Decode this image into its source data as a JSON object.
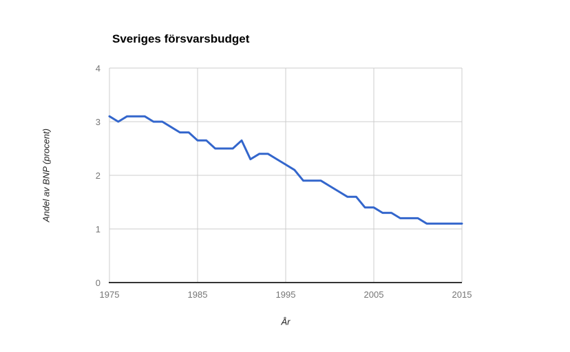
{
  "page": {
    "background": "#FFFFFF"
  },
  "chart_data": {
    "type": "line",
    "title": "Sveriges försvarsbudget",
    "xlabel": "År",
    "ylabel": "Andel av BNP (procent)",
    "x": [
      1975,
      1976,
      1977,
      1978,
      1979,
      1980,
      1981,
      1982,
      1983,
      1984,
      1985,
      1986,
      1987,
      1988,
      1989,
      1990,
      1991,
      1992,
      1993,
      1994,
      1995,
      1996,
      1997,
      1998,
      1999,
      2000,
      2001,
      2002,
      2003,
      2004,
      2005,
      2006,
      2007,
      2008,
      2009,
      2010,
      2011,
      2012,
      2013,
      2014,
      2015
    ],
    "values": [
      3.1,
      3.0,
      3.1,
      3.1,
      3.1,
      3.0,
      3.0,
      2.9,
      2.8,
      2.8,
      2.65,
      2.65,
      2.5,
      2.5,
      2.5,
      2.65,
      2.3,
      2.4,
      2.4,
      2.3,
      2.2,
      2.1,
      1.9,
      1.9,
      1.9,
      1.8,
      1.7,
      1.6,
      1.6,
      1.4,
      1.4,
      1.3,
      1.3,
      1.2,
      1.2,
      1.2,
      1.1,
      1.1,
      1.1,
      1.1,
      1.1
    ],
    "xlim": [
      1975,
      2015
    ],
    "ylim": [
      0,
      4
    ],
    "x_ticks": [
      "1975",
      "1985",
      "1995",
      "2005",
      "2015"
    ],
    "x_tick_years": [
      1975,
      1985,
      1995,
      2005,
      2015
    ],
    "y_ticks": [
      "0",
      "1",
      "2",
      "3",
      "4"
    ],
    "y_tick_values": [
      0,
      1,
      2,
      3,
      4
    ],
    "grid": true,
    "legend": "none",
    "line_color": "#3366CC",
    "line_width": 3,
    "gridline_color": "#CCCCCC",
    "baseline_color": "#333333",
    "tick_label_color": "#757575",
    "title_color": "#000000",
    "axis_title_color": "#222222"
  }
}
